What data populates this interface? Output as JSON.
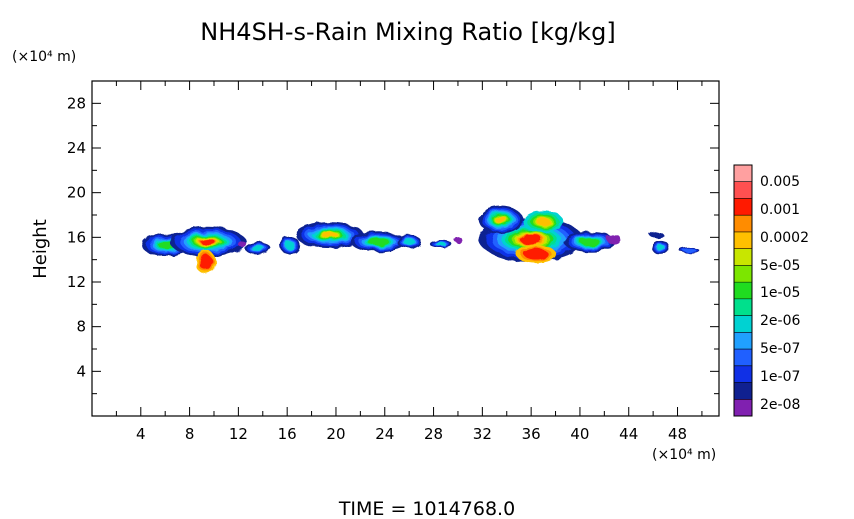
{
  "chart_data": {
    "type": "heatmap",
    "title": "NH4SH-s-Rain Mixing Ratio [kg/kg]",
    "ylabel": "Height",
    "y_unit_label": "(×10⁴ m)",
    "x_unit_label": "(×10⁴ m)",
    "x_ticks": [
      "4",
      "8",
      "12",
      "16",
      "20",
      "24",
      "28",
      "32",
      "36",
      "40",
      "44",
      "48"
    ],
    "y_ticks": [
      "4",
      "8",
      "12",
      "16",
      "20",
      "24",
      "28"
    ],
    "xlim": [
      0,
      51.4
    ],
    "ylim": [
      0,
      30
    ],
    "colorbar": {
      "labels": [
        "0.005",
        "0.001",
        "0.0002",
        "5e-05",
        "1e-05",
        "2e-06",
        "5e-07",
        "1e-07",
        "2e-08"
      ],
      "colors": [
        "#ffa0a0",
        "#ff5050",
        "#ff1a00",
        "#ff8c00",
        "#ffc000",
        "#c8e600",
        "#7ce600",
        "#20dc20",
        "#00e08c",
        "#00d2d2",
        "#20a0ff",
        "#2060ff",
        "#1030e6",
        "#102090",
        "#8020b0"
      ]
    },
    "footer": "TIME  =  1014768.0"
  }
}
